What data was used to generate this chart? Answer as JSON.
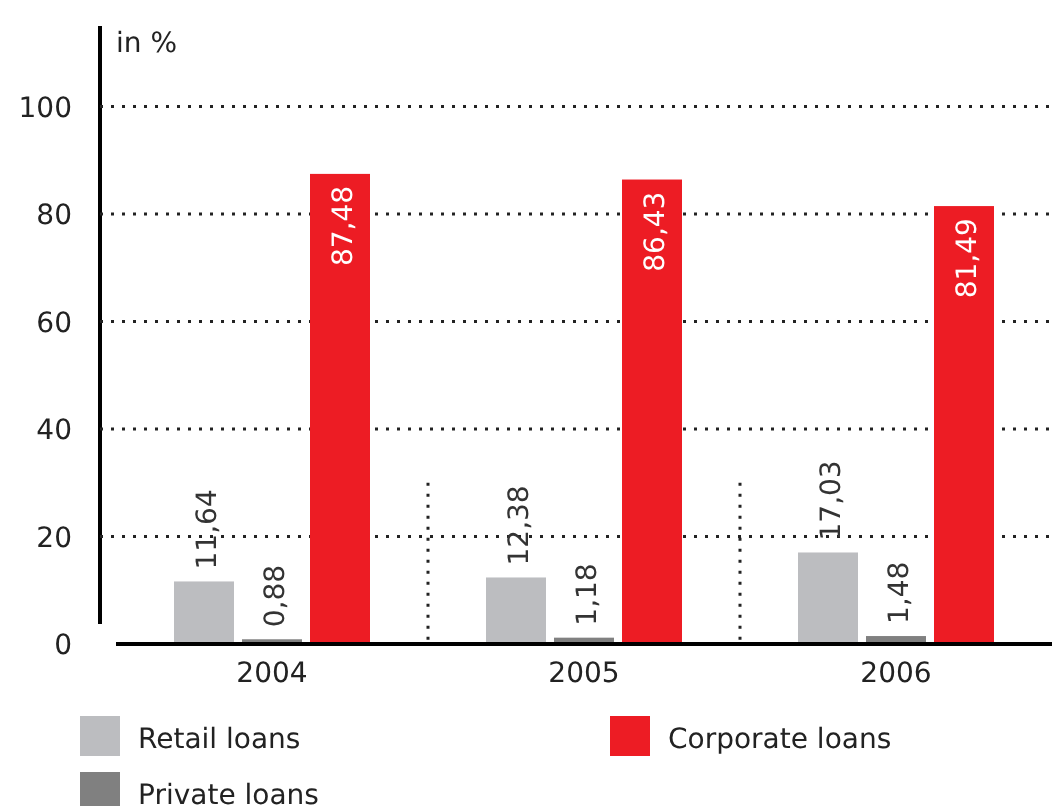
{
  "chart_data": {
    "type": "bar",
    "ylabel": "in %",
    "categories": [
      "2004",
      "2005",
      "2006"
    ],
    "series": [
      {
        "name": "Retail loans",
        "color": "#bcbdc0",
        "values": [
          11.64,
          12.38,
          17.03
        ]
      },
      {
        "name": "Private loans",
        "color": "#808080",
        "values": [
          0.88,
          1.18,
          1.48
        ]
      },
      {
        "name": "Corporate loans",
        "color": "#ed1c24",
        "values": [
          87.48,
          86.43,
          81.49
        ]
      }
    ],
    "value_labels": [
      [
        "11,64",
        "12,38",
        "17,03"
      ],
      [
        "0,88",
        "1,18",
        "1,48"
      ],
      [
        "87,48",
        "86,43",
        "81,49"
      ]
    ],
    "ylim": [
      0,
      115
    ],
    "yticks": [
      0,
      20,
      40,
      60,
      80,
      100
    ],
    "grid": "y",
    "legend": "bottom"
  }
}
